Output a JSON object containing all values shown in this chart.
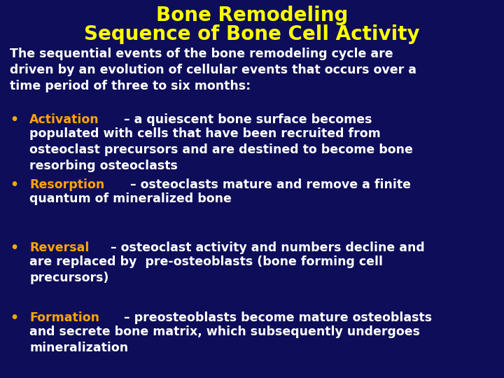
{
  "background_color": "#0d0d5a",
  "title_line1": "Bone Remodeling",
  "title_line2": "Sequence of Bone Cell Activity",
  "title_color": "#ffff00",
  "title_fontsize": 20,
  "body_color": "#ffffff",
  "body_fontsize": 12.5,
  "bullet_keyword_color": "#ffa500",
  "bullet_fontsize": 12.5,
  "intro_text": "The sequential events of the bone remodeling cycle are\ndriven by an evolution of cellular events that occurs over a\ntime period of three to six months:",
  "bullets": [
    {
      "keyword": "Activation",
      "line1_rest": " – a quiescent bone surface becomes",
      "extra_lines": "populated with cells that have been recruited from\nosteoclast precursors and are destined to become bone\nresorbing osteoclasts"
    },
    {
      "keyword": "Resorption",
      "line1_rest": " – osteoclasts mature and remove a finite",
      "extra_lines": "quantum of mineralized bone"
    },
    {
      "keyword": "Reversal",
      "line1_rest": " – osteoclast activity and numbers decline and",
      "extra_lines": "are replaced by  pre-osteoblasts (bone forming cell\nprecursors)"
    },
    {
      "keyword": "Formation",
      "line1_rest": " – preosteoblasts become mature osteoblasts",
      "extra_lines": "and secrete bone matrix, which subsequently undergoes\nmineralization"
    }
  ]
}
